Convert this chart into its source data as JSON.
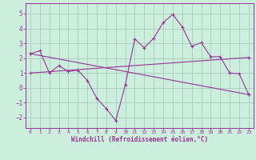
{
  "background_color": "#cceedd",
  "grid_color": "#aaccbb",
  "line_color": "#993399",
  "xlabel": "Windchill (Refroidissement éolien,°C)",
  "xlim": [
    -0.5,
    23.5
  ],
  "ylim": [
    -2.7,
    5.7
  ],
  "yticks": [
    -2,
    -1,
    0,
    1,
    2,
    3,
    4,
    5
  ],
  "xticks": [
    0,
    1,
    2,
    3,
    4,
    5,
    6,
    7,
    8,
    9,
    10,
    11,
    12,
    13,
    14,
    15,
    16,
    17,
    18,
    19,
    20,
    21,
    22,
    23
  ],
  "line1_x": [
    0,
    1,
    2,
    3,
    4,
    5,
    6,
    7,
    8,
    9,
    10,
    11,
    12,
    13,
    14,
    15,
    16,
    17,
    18,
    19,
    20,
    21,
    22,
    23
  ],
  "line1_y": [
    2.3,
    2.5,
    1.0,
    1.5,
    1.1,
    1.2,
    0.5,
    -0.7,
    -1.4,
    -2.2,
    0.2,
    3.3,
    2.7,
    3.35,
    4.4,
    4.95,
    4.1,
    2.8,
    3.05,
    2.1,
    2.1,
    1.0,
    0.95,
    -0.45
  ],
  "line2_x": [
    0,
    23
  ],
  "line2_y": [
    2.3,
    -0.45
  ],
  "line3_x": [
    0,
    23
  ],
  "line3_y": [
    1.0,
    2.05
  ]
}
